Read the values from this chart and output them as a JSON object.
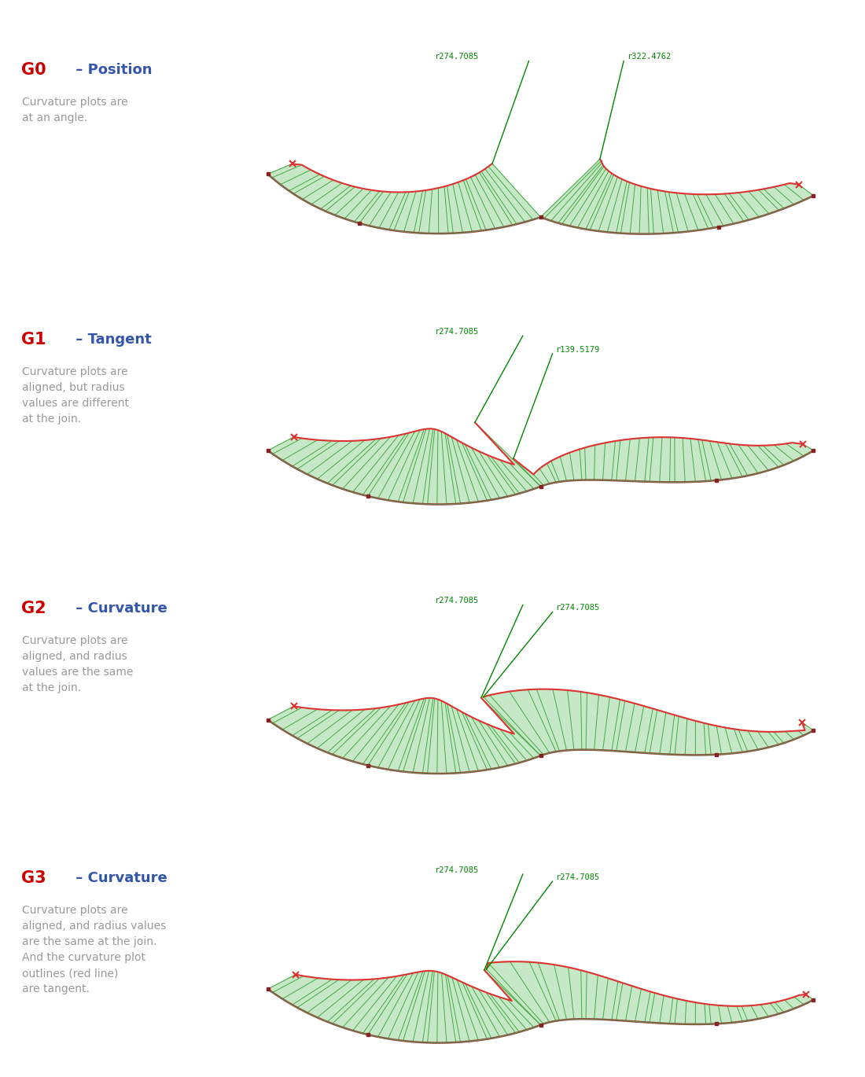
{
  "bg_color": "#ffffff",
  "panels": [
    {
      "label": "G0",
      "label_color": "#cc0000",
      "title": " – Position",
      "title_color": "#3355aa",
      "desc": "Curvature plots are\nat an angle.",
      "desc_color": "#999999",
      "r_left": "r274.7085",
      "r_right": "r322.4762",
      "join_type": "G0"
    },
    {
      "label": "G1",
      "label_color": "#cc0000",
      "title": " – Tangent",
      "title_color": "#3355aa",
      "desc": "Curvature plots are\naligned, but radius\nvalues are different\nat the join.",
      "desc_color": "#999999",
      "r_left": "r274.7085",
      "r_right": "r139.5179",
      "join_type": "G1"
    },
    {
      "label": "G2",
      "label_color": "#cc0000",
      "title": " – Curvature",
      "title_color": "#3355aa",
      "desc": "Curvature plots are\naligned, and radius\nvalues are the same\nat the join.",
      "desc_color": "#999999",
      "r_left": "r274.7085",
      "r_right": "r274.7085",
      "join_type": "G2"
    },
    {
      "label": "G3",
      "label_color": "#cc0000",
      "title": " – Curvature",
      "title_color": "#3355aa",
      "desc": "Curvature plots are\naligned, and radius values\nare the same at the join.\nAnd the curvature plot\noutlines (red line)\nare tangent.",
      "desc_color": "#999999",
      "r_left": "r274.7085",
      "r_right": "r274.7085",
      "join_type": "G3"
    }
  ],
  "curve_color": "#dd3333",
  "comb_line_color": "#44aa44",
  "comb_fill_color": "#aaddaa",
  "ctrl_color": "#882222",
  "label_color": "#008800",
  "label_fontsize": 7.5
}
